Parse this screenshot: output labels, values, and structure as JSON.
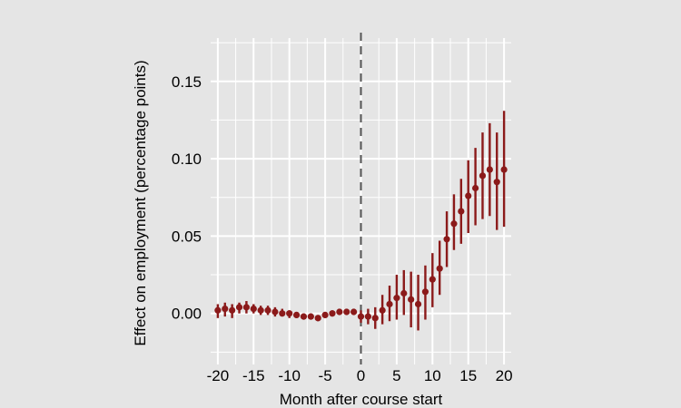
{
  "chart_data": {
    "type": "scatter",
    "title": "",
    "xlabel": "Month after course start",
    "ylabel": "Effect on employment (percentage points)",
    "xlim": [
      -21,
      21
    ],
    "ylim": [
      -0.033,
      0.178
    ],
    "xticks": [
      -20,
      -15,
      -10,
      -5,
      0,
      5,
      10,
      15,
      20
    ],
    "xtick_labels": [
      "-20",
      "-15",
      "-10",
      "-5",
      "0",
      "5",
      "10",
      "15",
      "20"
    ],
    "yticks": [
      0.0,
      0.05,
      0.1,
      0.15
    ],
    "ytick_labels": [
      "0.00",
      "0.05",
      "0.10",
      "0.15"
    ],
    "grid": true,
    "vline": {
      "x": 0,
      "style": "dashed"
    },
    "series": [
      {
        "color": "#8b1a1a",
        "x": [
          -20,
          -19,
          -18,
          -17,
          -16,
          -15,
          -14,
          -13,
          -12,
          -11,
          -10,
          -9,
          -8,
          -7,
          -6,
          -5,
          -4,
          -3,
          -2,
          -1,
          0,
          1,
          2,
          3,
          4,
          5,
          6,
          7,
          8,
          9,
          10,
          11,
          12,
          13,
          14,
          15,
          16,
          17,
          18,
          19,
          20
        ],
        "y": [
          0.002,
          0.003,
          0.002,
          0.004,
          0.004,
          0.003,
          0.002,
          0.002,
          0.001,
          0.0,
          0.0,
          -0.001,
          -0.002,
          -0.002,
          -0.003,
          -0.001,
          0.0,
          0.001,
          0.001,
          0.001,
          -0.002,
          -0.002,
          -0.003,
          0.002,
          0.006,
          0.01,
          0.013,
          0.009,
          0.006,
          0.014,
          0.022,
          0.029,
          0.048,
          0.058,
          0.066,
          0.076,
          0.081,
          0.089,
          0.093,
          0.085,
          0.093
        ],
        "lower": [
          -0.003,
          -0.002,
          -0.003,
          0.0,
          0.0,
          0.0,
          -0.001,
          -0.001,
          -0.002,
          -0.002,
          -0.003,
          -0.003,
          -0.004,
          -0.004,
          -0.005,
          -0.003,
          -0.002,
          -0.001,
          -0.001,
          -0.001,
          -0.006,
          -0.007,
          -0.01,
          -0.007,
          -0.005,
          -0.004,
          -0.001,
          -0.009,
          -0.011,
          -0.004,
          0.004,
          0.012,
          0.03,
          0.041,
          0.045,
          0.052,
          0.057,
          0.061,
          0.063,
          0.054,
          0.056
        ],
        "upper": [
          0.006,
          0.007,
          0.006,
          0.007,
          0.008,
          0.006,
          0.005,
          0.005,
          0.004,
          0.003,
          0.002,
          0.001,
          0.0,
          0.0,
          -0.001,
          0.001,
          0.002,
          0.003,
          0.003,
          0.003,
          0.002,
          0.003,
          0.004,
          0.012,
          0.018,
          0.025,
          0.028,
          0.027,
          0.025,
          0.031,
          0.039,
          0.047,
          0.066,
          0.077,
          0.087,
          0.099,
          0.107,
          0.117,
          0.123,
          0.117,
          0.131
        ]
      }
    ]
  }
}
